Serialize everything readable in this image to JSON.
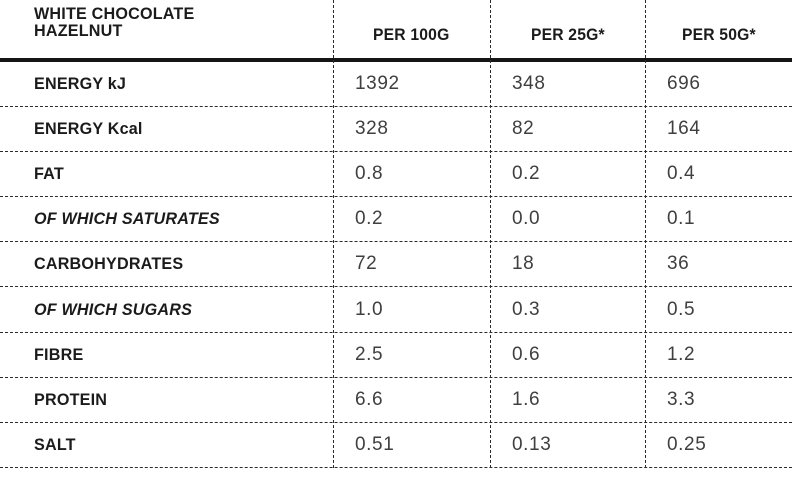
{
  "table": {
    "title_line1": "WHITE CHOCOLATE",
    "title_line2": "HAZELNUT",
    "columns": [
      "PER 100G",
      "PER 25G*",
      "PER 50G*"
    ],
    "rows": [
      {
        "label": "ENERGY kJ",
        "italic": false,
        "values": [
          "1392",
          "348",
          "696"
        ]
      },
      {
        "label": "ENERGY Kcal",
        "italic": false,
        "values": [
          "328",
          "82",
          "164"
        ]
      },
      {
        "label": "FAT",
        "italic": false,
        "values": [
          "0.8",
          "0.2",
          "0.4"
        ]
      },
      {
        "label": "OF WHICH SATURATES",
        "italic": true,
        "values": [
          "0.2",
          "0.0",
          "0.1"
        ]
      },
      {
        "label": "CARBOHYDRATES",
        "italic": false,
        "values": [
          "72",
          "18",
          "36"
        ]
      },
      {
        "label": "OF WHICH SUGARS",
        "italic": true,
        "values": [
          "1.0",
          "0.3",
          "0.5"
        ]
      },
      {
        "label": "FIBRE",
        "italic": false,
        "values": [
          "2.5",
          "0.6",
          "1.2"
        ]
      },
      {
        "label": "PROTEIN",
        "italic": false,
        "values": [
          "6.6",
          "1.6",
          "3.3"
        ]
      },
      {
        "label": "SALT",
        "italic": false,
        "values": [
          "0.51",
          "0.13",
          "0.25"
        ]
      }
    ],
    "colors": {
      "label_text": "#1b1b1b",
      "value_text": "#3f3f3f",
      "line": "#2b2b2b",
      "header_rule": "#151515",
      "background": "#ffffff"
    }
  }
}
